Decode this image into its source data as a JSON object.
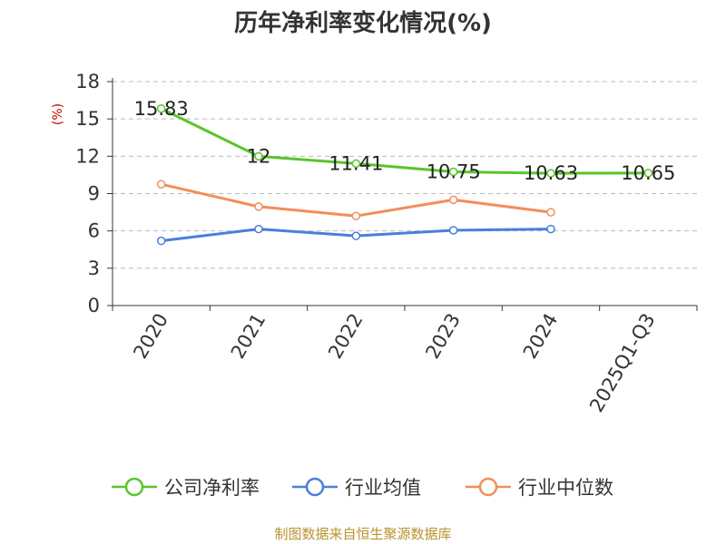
{
  "source": "制图数据来自恒生聚源数据库",
  "colors": {
    "source": "#b8922e",
    "ylabel": "#cc0000",
    "axis": "#333333",
    "grid": "#bbbbbb"
  },
  "chart_data": {
    "type": "line",
    "title": "历年净利率变化情况(%)",
    "ylabel": "(%)",
    "categories": [
      "2020",
      "2021",
      "2022",
      "2023",
      "2024",
      "2025Q1-Q3"
    ],
    "ylim": [
      0,
      18
    ],
    "yticks": [
      0,
      3,
      6,
      9,
      12,
      15,
      18
    ],
    "grid": "horizontal dashed",
    "legend": "bottom",
    "series": [
      {
        "name": "公司净利率",
        "color": "#5ac42a",
        "values": [
          15.83,
          12,
          11.41,
          10.75,
          10.63,
          10.65
        ],
        "labels": [
          "15.83",
          "12",
          "11.41",
          "10.75",
          "10.63",
          "10.65"
        ]
      },
      {
        "name": "行业均值",
        "color": "#4a7fdc",
        "values": [
          5.2,
          6.15,
          5.6,
          6.05,
          6.15,
          null
        ]
      },
      {
        "name": "行业中位数",
        "color": "#f28e5a",
        "values": [
          9.75,
          7.95,
          7.2,
          8.5,
          7.5,
          null
        ]
      }
    ]
  }
}
